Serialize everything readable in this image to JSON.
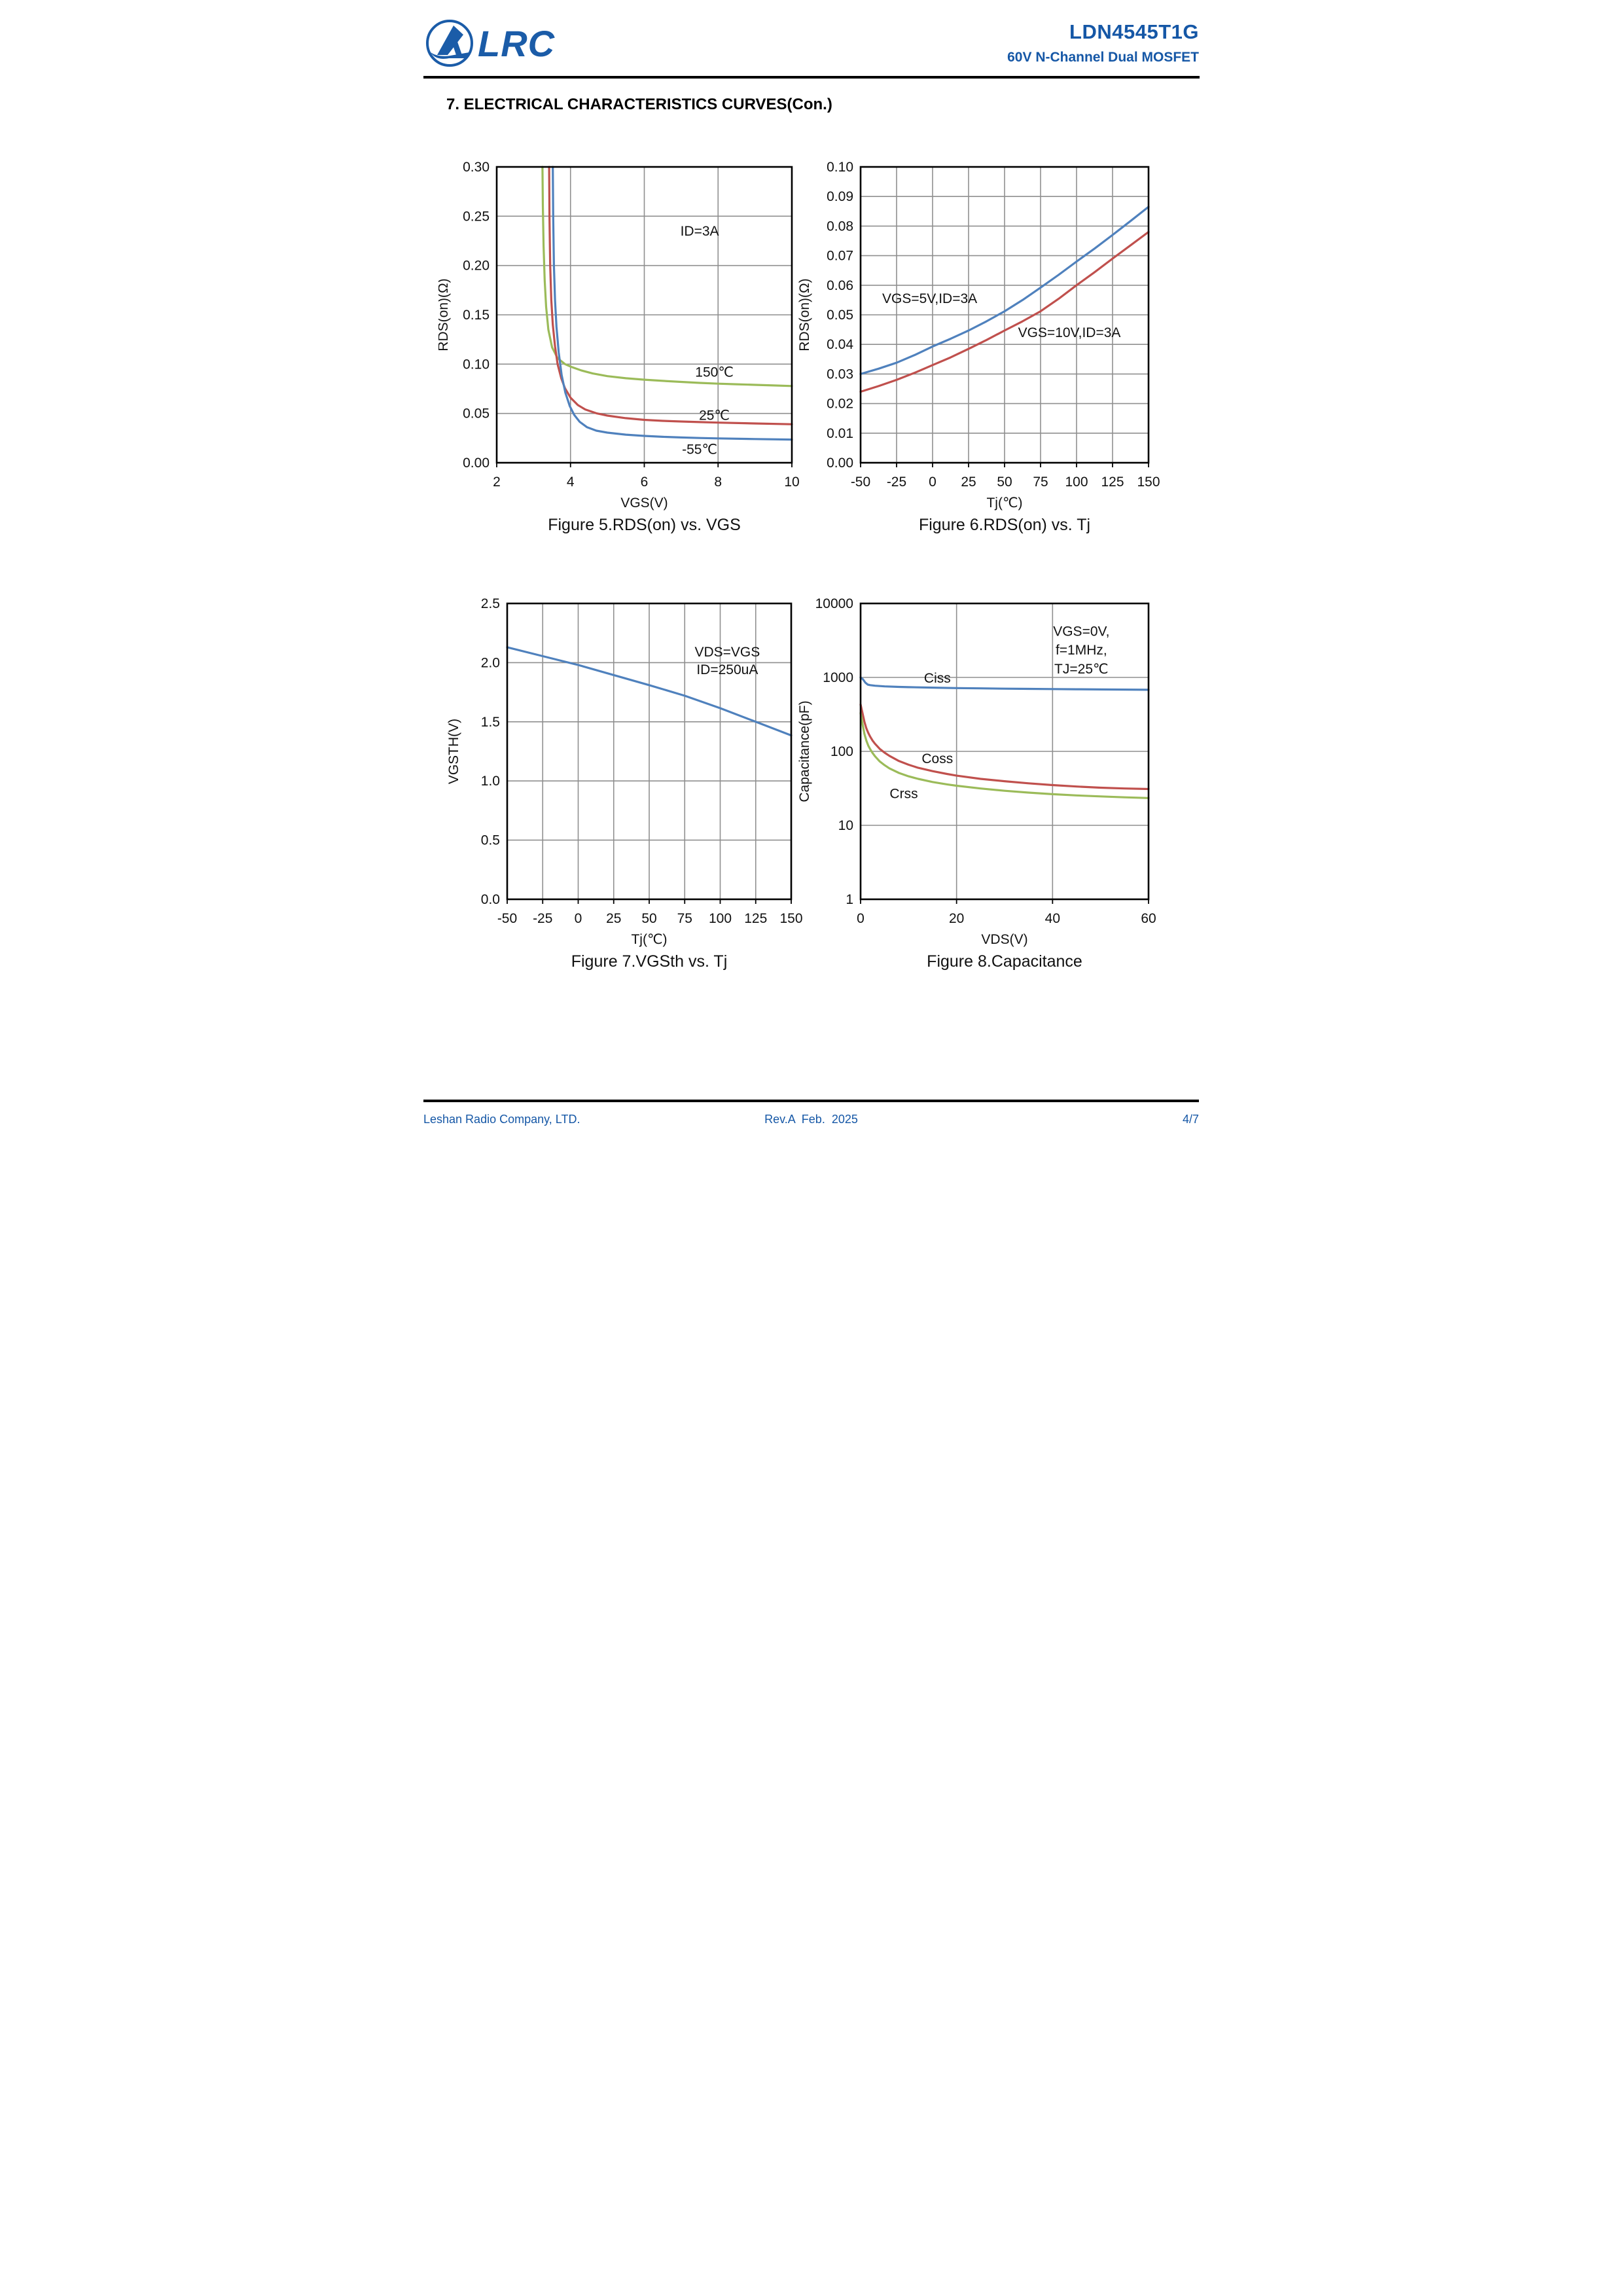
{
  "header": {
    "logo_text": "LRC",
    "part_number": "LDN4545T1G",
    "subtitle": "60V N-Channel Dual MOSFET"
  },
  "section_title": "7. ELECTRICAL CHARACTERISTICS CURVES(Con.)",
  "footer": {
    "company": "Leshan Radio Company, LTD.",
    "revision": "Rev.A  Feb.  2025",
    "page": "4/7"
  },
  "colors": {
    "brand_blue": "#1557A6",
    "series_blue": "#4F81BD",
    "series_red": "#C0504D",
    "series_green": "#9BBB59",
    "grid_gray": "#8F8F8F"
  },
  "chart_data": [
    {
      "id": "fig5",
      "type": "line",
      "caption": "Figure 5.RDS(on) vs. VGS",
      "xlabel": "VGS(V)",
      "ylabel": "RDS(on)(Ω)",
      "xlim": [
        2,
        10
      ],
      "ylim": [
        0,
        0.3
      ],
      "yscale": "linear",
      "grid": true,
      "xticks": [
        2,
        4,
        6,
        8,
        10
      ],
      "xtick_labels": [
        "2",
        "4",
        "6",
        "8",
        "10"
      ],
      "yticks": [
        0,
        0.05,
        0.1,
        0.15,
        0.2,
        0.25,
        0.3
      ],
      "ytick_labels": [
        "0.00",
        "0.05",
        "0.10",
        "0.15",
        "0.20",
        "0.25",
        "0.30"
      ],
      "xgrid": [
        4,
        6,
        8
      ],
      "ygrid": [
        0.05,
        0.1,
        0.15,
        0.2,
        0.25
      ],
      "annotations": [
        {
          "text": "ID=3A",
          "x": 7.5,
          "y": 0.235
        },
        {
          "text": "150℃",
          "x": 7.9,
          "y": 0.092
        },
        {
          "text": "25℃",
          "x": 7.9,
          "y": 0.048
        },
        {
          "text": "-55℃",
          "x": 7.5,
          "y": 0.0135
        }
      ],
      "series": [
        {
          "name": "150C",
          "color": "#9BBB59",
          "points": [
            [
              3.24,
              0.3
            ],
            [
              3.25,
              0.26
            ],
            [
              3.27,
              0.22
            ],
            [
              3.3,
              0.185
            ],
            [
              3.34,
              0.158
            ],
            [
              3.4,
              0.135
            ],
            [
              3.5,
              0.117
            ],
            [
              3.65,
              0.106
            ],
            [
              3.85,
              0.1
            ],
            [
              4.0,
              0.0975
            ],
            [
              4.3,
              0.0935
            ],
            [
              4.6,
              0.0905
            ],
            [
              5.0,
              0.0878
            ],
            [
              5.5,
              0.0857
            ],
            [
              6.0,
              0.0842
            ],
            [
              6.5,
              0.083
            ],
            [
              7.0,
              0.082
            ],
            [
              7.5,
              0.081
            ],
            [
              8.0,
              0.0802
            ],
            [
              8.5,
              0.0796
            ],
            [
              9.0,
              0.079
            ],
            [
              9.5,
              0.0784
            ],
            [
              10,
              0.0778
            ]
          ]
        },
        {
          "name": "25C",
          "color": "#C0504D",
          "points": [
            [
              3.42,
              0.3
            ],
            [
              3.43,
              0.25
            ],
            [
              3.45,
              0.2
            ],
            [
              3.48,
              0.165
            ],
            [
              3.52,
              0.14
            ],
            [
              3.58,
              0.118
            ],
            [
              3.65,
              0.1
            ],
            [
              3.75,
              0.0855
            ],
            [
              3.85,
              0.0755
            ],
            [
              4.0,
              0.066
            ],
            [
              4.2,
              0.0585
            ],
            [
              4.4,
              0.054
            ],
            [
              4.7,
              0.0502
            ],
            [
              5.0,
              0.0478
            ],
            [
              5.5,
              0.0452
            ],
            [
              6.0,
              0.0435
            ],
            [
              6.5,
              0.0425
            ],
            [
              7.0,
              0.0418
            ],
            [
              7.5,
              0.0412
            ],
            [
              8.0,
              0.0407
            ],
            [
              9.0,
              0.0398
            ],
            [
              10,
              0.039
            ]
          ]
        },
        {
          "name": "-55C",
          "color": "#4F81BD",
          "points": [
            [
              3.52,
              0.3
            ],
            [
              3.53,
              0.25
            ],
            [
              3.55,
              0.2
            ],
            [
              3.58,
              0.165
            ],
            [
              3.62,
              0.138
            ],
            [
              3.68,
              0.112
            ],
            [
              3.76,
              0.089
            ],
            [
              3.86,
              0.071
            ],
            [
              3.98,
              0.0575
            ],
            [
              4.1,
              0.0485
            ],
            [
              4.25,
              0.0415
            ],
            [
              4.45,
              0.036
            ],
            [
              4.7,
              0.0325
            ],
            [
              5.0,
              0.0305
            ],
            [
              5.5,
              0.0285
            ],
            [
              6.0,
              0.0272
            ],
            [
              6.5,
              0.0263
            ],
            [
              7.0,
              0.0256
            ],
            [
              7.5,
              0.0251
            ],
            [
              8.0,
              0.0247
            ],
            [
              9.0,
              0.024
            ],
            [
              10,
              0.0235
            ]
          ]
        }
      ]
    },
    {
      "id": "fig6",
      "type": "line",
      "caption": "Figure 6.RDS(on) vs. Tj",
      "xlabel": "Tj(℃)",
      "ylabel": "RDS(on)(Ω)",
      "xlim": [
        -50,
        150
      ],
      "ylim": [
        0,
        0.1
      ],
      "yscale": "linear",
      "grid": true,
      "xticks": [
        -50,
        -25,
        0,
        25,
        50,
        75,
        100,
        125,
        150
      ],
      "xtick_labels": [
        "-50",
        "-25",
        "0",
        "25",
        "50",
        "75",
        "100",
        "125",
        "150"
      ],
      "yticks": [
        0,
        0.01,
        0.02,
        0.03,
        0.04,
        0.05,
        0.06,
        0.07,
        0.08,
        0.09,
        0.1
      ],
      "ytick_labels": [
        "0.00",
        "0.01",
        "0.02",
        "0.03",
        "0.04",
        "0.05",
        "0.06",
        "0.07",
        "0.08",
        "0.09",
        "0.10"
      ],
      "xgrid": [
        -25,
        0,
        25,
        50,
        75,
        100,
        125
      ],
      "ygrid": [
        0.01,
        0.02,
        0.03,
        0.04,
        0.05,
        0.06,
        0.07,
        0.08,
        0.09
      ],
      "annotations": [
        {
          "text": "VGS=5V,ID=3A",
          "x": -2,
          "y": 0.0555
        },
        {
          "text": "VGS=10V,ID=3A",
          "x": 95,
          "y": 0.044
        }
      ],
      "series": [
        {
          "name": "VGS=5V",
          "color": "#4F81BD",
          "points": [
            [
              -50,
              0.03
            ],
            [
              -37.5,
              0.0318
            ],
            [
              -25,
              0.0338
            ],
            [
              -12.5,
              0.0364
            ],
            [
              0,
              0.0393
            ],
            [
              12.5,
              0.0419
            ],
            [
              25,
              0.0447
            ],
            [
              37.5,
              0.0478
            ],
            [
              50,
              0.0512
            ],
            [
              62.5,
              0.055
            ],
            [
              75,
              0.0592
            ],
            [
              87.5,
              0.0635
            ],
            [
              100,
              0.068
            ],
            [
              112.5,
              0.0724
            ],
            [
              125,
              0.077
            ],
            [
              137.5,
              0.0817
            ],
            [
              150,
              0.0865
            ]
          ]
        },
        {
          "name": "VGS=10V",
          "color": "#C0504D",
          "points": [
            [
              -50,
              0.024
            ],
            [
              -37.5,
              0.0259
            ],
            [
              -25,
              0.028
            ],
            [
              -12.5,
              0.0304
            ],
            [
              0,
              0.033
            ],
            [
              12.5,
              0.0356
            ],
            [
              25,
              0.0385
            ],
            [
              37.5,
              0.0415
            ],
            [
              50,
              0.0447
            ],
            [
              62.5,
              0.0478
            ],
            [
              75,
              0.0512
            ],
            [
              87.5,
              0.0554
            ],
            [
              100,
              0.06
            ],
            [
              112.5,
              0.0644
            ],
            [
              125,
              0.069
            ],
            [
              137.5,
              0.0735
            ],
            [
              150,
              0.078
            ]
          ]
        }
      ]
    },
    {
      "id": "fig7",
      "type": "line",
      "caption": "Figure 7.VGSth vs. Tj",
      "xlabel": "Tj(℃)",
      "ylabel": "VGSTH(V)",
      "xlim": [
        -50,
        150
      ],
      "ylim": [
        0,
        2.5
      ],
      "yscale": "linear",
      "grid": true,
      "xticks": [
        -50,
        -25,
        0,
        25,
        50,
        75,
        100,
        125,
        150
      ],
      "xtick_labels": [
        "-50",
        "-25",
        "0",
        "25",
        "50",
        "75",
        "100",
        "125",
        "150"
      ],
      "yticks": [
        0,
        0.5,
        1.0,
        1.5,
        2.0,
        2.5
      ],
      "ytick_labels": [
        "0.0",
        "0.5",
        "1.0",
        "1.5",
        "2.0",
        "2.5"
      ],
      "xgrid": [
        -25,
        0,
        25,
        50,
        75,
        100,
        125
      ],
      "ygrid": [
        0.5,
        1.0,
        1.5,
        2.0
      ],
      "annotations": [
        {
          "text": "VDS=VGS",
          "x": 105,
          "y": 2.09
        },
        {
          "text": "ID=250uA",
          "x": 105,
          "y": 1.94
        }
      ],
      "series": [
        {
          "name": "VGSth",
          "color": "#4F81BD",
          "points": [
            [
              -50,
              2.13
            ],
            [
              -25,
              2.055
            ],
            [
              0,
              1.98
            ],
            [
              25,
              1.895
            ],
            [
              50,
              1.81
            ],
            [
              75,
              1.72
            ],
            [
              100,
              1.615
            ],
            [
              125,
              1.5
            ],
            [
              150,
              1.385
            ]
          ]
        }
      ]
    },
    {
      "id": "fig8",
      "type": "line",
      "caption": "Figure 8.Capacitance",
      "xlabel": "VDS(V)",
      "ylabel": "Capacitance(pF)",
      "xlim": [
        0,
        60
      ],
      "ylim": [
        1,
        10000
      ],
      "yscale": "log",
      "grid": true,
      "xticks": [
        0,
        20,
        40,
        60
      ],
      "xtick_labels": [
        "0",
        "20",
        "40",
        "60"
      ],
      "yticks": [
        1,
        10,
        100,
        1000,
        10000
      ],
      "ytick_labels": [
        "1",
        "10",
        "100",
        "1000",
        "10000"
      ],
      "xgrid": [
        20,
        40
      ],
      "ygrid": [
        10,
        100,
        1000
      ],
      "annotations": [
        {
          "text": "VGS=0V,",
          "x": 46,
          "y": 4200
        },
        {
          "text": "f=1MHz,",
          "x": 46,
          "y": 2350
        },
        {
          "text": "TJ=25℃",
          "x": 46,
          "y": 1300
        },
        {
          "text": "Ciss",
          "x": 16,
          "y": 980
        },
        {
          "text": "Coss",
          "x": 16,
          "y": 80
        },
        {
          "text": "Crss",
          "x": 9,
          "y": 27
        }
      ],
      "series": [
        {
          "name": "Ciss",
          "color": "#4F81BD",
          "points": [
            [
              0,
              1000
            ],
            [
              0.5,
              940
            ],
            [
              1,
              850
            ],
            [
              1.5,
              800
            ],
            [
              2,
              786
            ],
            [
              3,
              772
            ],
            [
              5,
              757
            ],
            [
              8,
              744
            ],
            [
              10,
              738
            ],
            [
              15,
              727
            ],
            [
              20,
              717
            ],
            [
              25,
              711
            ],
            [
              30,
              705
            ],
            [
              35,
              700
            ],
            [
              40,
              696
            ],
            [
              45,
              692
            ],
            [
              50,
              688
            ],
            [
              55,
              684
            ],
            [
              60,
              680
            ]
          ]
        },
        {
          "name": "Coss",
          "color": "#C0504D",
          "points": [
            [
              0,
              430
            ],
            [
              0.4,
              330
            ],
            [
              0.8,
              250
            ],
            [
              1.2,
              205
            ],
            [
              1.6,
              178
            ],
            [
              2,
              158
            ],
            [
              2.5,
              140
            ],
            [
              3,
              127
            ],
            [
              4,
              108
            ],
            [
              5,
              96
            ],
            [
              6,
              87
            ],
            [
              8,
              74
            ],
            [
              10,
              66
            ],
            [
              12,
              60
            ],
            [
              15,
              54
            ],
            [
              18,
              49.5
            ],
            [
              20,
              47
            ],
            [
              25,
              42.5
            ],
            [
              30,
              39.5
            ],
            [
              35,
              37
            ],
            [
              40,
              35
            ],
            [
              45,
              33.5
            ],
            [
              50,
              32.3
            ],
            [
              55,
              31.5
            ],
            [
              60,
              31
            ]
          ]
        },
        {
          "name": "Crss",
          "color": "#9BBB59",
          "points": [
            [
              0,
              330
            ],
            [
              0.4,
              235
            ],
            [
              0.8,
              172
            ],
            [
              1.2,
              140
            ],
            [
              1.6,
              120
            ],
            [
              2,
              107
            ],
            [
              2.5,
              95
            ],
            [
              3,
              86
            ],
            [
              4,
              73
            ],
            [
              5,
              65
            ],
            [
              6,
              59
            ],
            [
              8,
              51
            ],
            [
              10,
              46
            ],
            [
              12,
              42.5
            ],
            [
              15,
              38.5
            ],
            [
              18,
              35.8
            ],
            [
              20,
              34.3
            ],
            [
              25,
              31.5
            ],
            [
              30,
              29.3
            ],
            [
              35,
              27.7
            ],
            [
              40,
              26.4
            ],
            [
              45,
              25.4
            ],
            [
              50,
              24.6
            ],
            [
              55,
              23.9
            ],
            [
              60,
              23.4
            ]
          ]
        }
      ]
    }
  ]
}
